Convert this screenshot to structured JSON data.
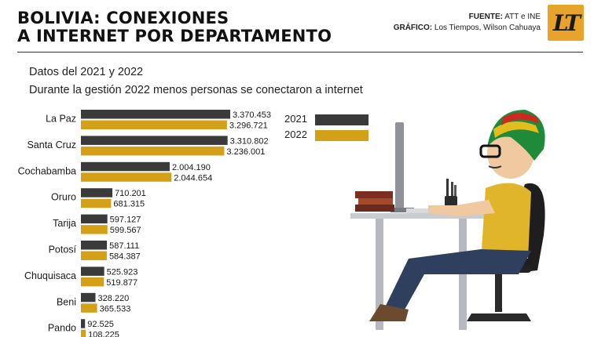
{
  "header": {
    "title_line1": "BOLIVIA: CONEXIONES",
    "title_line2": "A INTERNET POR DEPARTAMENTO",
    "source_label": "FUENTE:",
    "source_value": "ATT e INE",
    "graphic_label": "GRÁFICO:",
    "graphic_value": "Los Tiempos, Wilson Cahuaya",
    "logo_text": "LT"
  },
  "subtitle_1": "Datos del 2021 y 2022",
  "subtitle_2": "Durante la gestión 2022 menos personas se conectaron a internet",
  "colors": {
    "y2021": "#3a3a3a",
    "y2022": "#d4a017"
  },
  "chart_data": {
    "type": "bar",
    "orientation": "horizontal",
    "categories": [
      "La Paz",
      "Santa Cruz",
      "Cochabamba",
      "Oruro",
      "Tarija",
      "Potosí",
      "Chuquisaca",
      "Beni",
      "Pando"
    ],
    "series": [
      {
        "name": "2021",
        "values": [
          3370453,
          3310802,
          2004190,
          710201,
          597127,
          587111,
          525923,
          328220,
          92525
        ],
        "labels": [
          "3.370.453",
          "3.310.802",
          "2.004.190",
          "710.201",
          "597.127",
          "587.111",
          "525.923",
          "328.220",
          "92.525"
        ]
      },
      {
        "name": "2022",
        "values": [
          3296721,
          3236001,
          2044654,
          681315,
          599567,
          584387,
          519877,
          365533,
          108225
        ],
        "labels": [
          "3.296.721",
          "3.236.001",
          "2.044.654",
          "681.315",
          "599.567",
          "584.387",
          "519.877",
          "365.533",
          "108.225"
        ]
      }
    ],
    "legend_position": "right",
    "xlim": [
      0,
      3370453
    ]
  }
}
